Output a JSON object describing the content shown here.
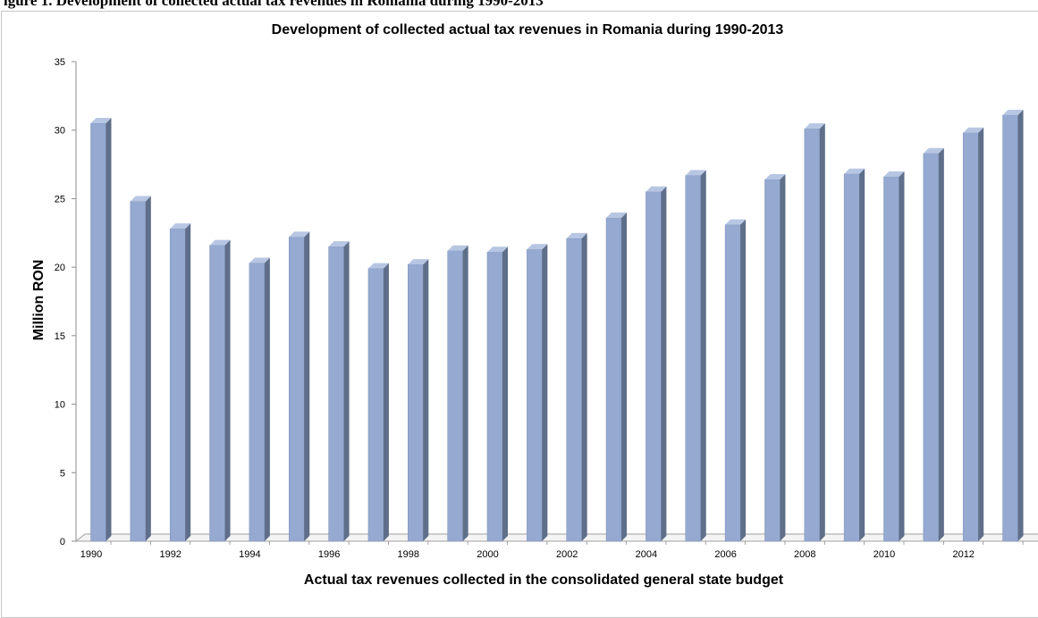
{
  "page": {
    "clipped_heading": "igure 1. Development of collected actual tax revenues in Romania during 1990-2013"
  },
  "chart_data": {
    "type": "bar",
    "style": "3d-column",
    "title": "Development of collected actual tax revenues in Romania during 1990-2013",
    "xlabel": "Actual tax revenues collected in the consolidated general state budget",
    "ylabel": "Million RON",
    "ylim": [
      0,
      35
    ],
    "yticks": [
      0,
      5,
      10,
      15,
      20,
      25,
      30,
      35
    ],
    "categories": [
      "1990",
      "1991",
      "1992",
      "1993",
      "1994",
      "1995",
      "1996",
      "1997",
      "1998",
      "1999",
      "2000",
      "2001",
      "2002",
      "2003",
      "2004",
      "2005",
      "2006",
      "2007",
      "2008",
      "2009",
      "2010",
      "2011",
      "2012",
      "2013"
    ],
    "x_tick_labels": [
      "1990",
      "",
      "1992",
      "",
      "1994",
      "",
      "1996",
      "",
      "1998",
      "",
      "2000",
      "",
      "2002",
      "",
      "2004",
      "",
      "2006",
      "",
      "2008",
      "",
      "2010",
      "",
      "2012",
      ""
    ],
    "series": [
      {
        "values": [
          30.5,
          24.8,
          22.8,
          21.6,
          20.3,
          22.2,
          21.5,
          19.9,
          20.2,
          21.2,
          21.1,
          21.3,
          22.1,
          23.6,
          25.5,
          26.7,
          23.1,
          26.4,
          30.1,
          26.8,
          26.6,
          28.3,
          29.8,
          31.1
        ]
      }
    ],
    "grid": false,
    "legend": "none",
    "colors": {
      "bar_front": "#95a9d1",
      "bar_side": "#5f6f8a",
      "bar_top": "#b7c6e3",
      "axis": "#8c8c8c"
    }
  }
}
